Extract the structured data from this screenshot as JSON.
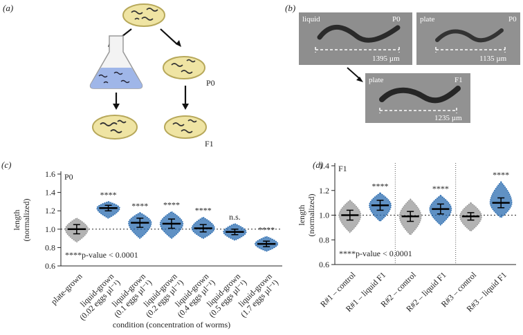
{
  "panels": {
    "a": {
      "label": "(a)",
      "p0": "P0",
      "f1": "F1"
    },
    "b": {
      "label": "(b)",
      "images": [
        {
          "condition": "liquid",
          "generation": "P0",
          "scale": "1395 µm"
        },
        {
          "condition": "plate",
          "generation": "P0",
          "scale": "1135 µm"
        },
        {
          "condition": "plate",
          "generation": "F1",
          "scale": "1235 µm"
        }
      ]
    }
  },
  "chart_data": [
    {
      "type": "dot-plot",
      "panel_label": "(c)",
      "annotation": "P0",
      "note": "****p-value < 0.0001",
      "ylabel": "length\n(normalized)",
      "xlabel": "condition (concentration of worms)",
      "categories": [
        "plate-grown",
        "liquid-grown\n(0.02 eggs µl⁻¹)",
        "liquid-grown\n(0.1 eggs µl⁻¹)",
        "liquid-grown\n(0.2 eggs µl⁻¹)",
        "liquid-grown\n(0.4 eggs µl⁻¹)",
        "liquid-grown\n(0.5 eggs µl⁻¹)",
        "liquid-grown\n(1.7 eggs µl⁻¹)"
      ],
      "mean": [
        1.0,
        1.23,
        1.07,
        1.06,
        1.01,
        0.97,
        0.84
      ],
      "sd": [
        0.05,
        0.03,
        0.05,
        0.05,
        0.04,
        0.03,
        0.03
      ],
      "min": [
        0.86,
        1.12,
        0.9,
        0.9,
        0.9,
        0.88,
        0.76
      ],
      "max": [
        1.12,
        1.3,
        1.18,
        1.19,
        1.13,
        1.06,
        0.92
      ],
      "significance": [
        null,
        "****",
        "****",
        "****",
        "****",
        "n.s.",
        "****"
      ],
      "colors": [
        "#9a9a9a",
        "#2b6cb0",
        "#2b6cb0",
        "#2b6cb0",
        "#2b6cb0",
        "#2b6cb0",
        "#2b6cb0"
      ],
      "reference": 1,
      "ylim": [
        0.6,
        1.6
      ],
      "yticks": [
        0.6,
        0.8,
        {
          "value": 1,
          "label": "1.0"
        },
        1.2,
        1.4,
        1.6
      ]
    },
    {
      "type": "dot-plot",
      "panel_label": "(d)",
      "annotation": "F1",
      "note": "****p-value < 0.0001",
      "ylabel": "length\n(normalized)",
      "categories": [
        "R#1 – control",
        "R#1 – liquid F1",
        "R#2 – control",
        "R#2 – liquid F1",
        "R#3 – control",
        "R#3 – liquid F1"
      ],
      "mean": [
        1.0,
        1.08,
        0.99,
        1.05,
        0.99,
        1.1
      ],
      "sd": [
        0.04,
        0.04,
        0.04,
        0.04,
        0.03,
        0.04
      ],
      "min": [
        0.86,
        0.95,
        0.84,
        0.92,
        0.87,
        0.98
      ],
      "max": [
        1.12,
        1.18,
        1.13,
        1.16,
        1.1,
        1.27
      ],
      "significance": [
        null,
        "****",
        null,
        "****",
        null,
        "****"
      ],
      "colors": [
        "#9a9a9a",
        "#2b6cb0",
        "#9a9a9a",
        "#2b6cb0",
        "#9a9a9a",
        "#2b6cb0"
      ],
      "reference": 1,
      "ylim": [
        0.6,
        1.4
      ],
      "yticks": [
        0.6,
        0.8,
        {
          "value": 1,
          "label": "1.0"
        },
        1.2,
        1.4
      ]
    }
  ]
}
